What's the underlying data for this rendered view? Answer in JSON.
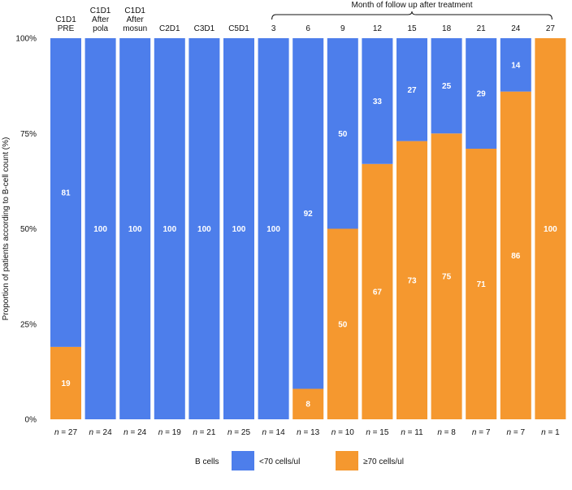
{
  "chart_data": {
    "type": "bar",
    "stacked": true,
    "categories": [
      [
        "C1D1",
        "PRE"
      ],
      [
        "C1D1",
        "After",
        "pola"
      ],
      [
        "C1D1",
        "After",
        "mosun"
      ],
      [
        "C2D1"
      ],
      [
        "C3D1"
      ],
      [
        "C5D1"
      ],
      [
        "3"
      ],
      [
        "6"
      ],
      [
        "9"
      ],
      [
        "12"
      ],
      [
        "15"
      ],
      [
        "18"
      ],
      [
        "21"
      ],
      [
        "24"
      ],
      [
        "27"
      ]
    ],
    "n_labels": [
      "n = 27",
      "n = 24",
      "n = 24",
      "n = 19",
      "n = 21",
      "n = 25",
      "n = 14",
      "n = 13",
      "n = 10",
      "n = 15",
      "n = 11",
      "n = 8",
      "n = 7",
      "n = 7",
      "n = 1"
    ],
    "series": [
      {
        "name": "≥70 cells/ul",
        "color": "#F5982F",
        "values": [
          19,
          0,
          0,
          0,
          0,
          0,
          0,
          8,
          50,
          67,
          73,
          75,
          71,
          86,
          100
        ]
      },
      {
        "name": "<70 cells/ul",
        "color": "#4D7EEB",
        "values": [
          81,
          100,
          100,
          100,
          100,
          100,
          100,
          92,
          50,
          33,
          27,
          25,
          29,
          14,
          0
        ]
      }
    ],
    "ylabel": "Proportion of patients according to B-cell count (%)",
    "ylim": [
      0,
      100
    ],
    "yticks": [
      "0%",
      "25%",
      "50%",
      "75%",
      "100%"
    ],
    "bracket_label": "Month of follow up after treatment",
    "bracket_range": [
      6,
      14
    ],
    "legend": {
      "title": "B cells",
      "position": "bottom-center"
    }
  }
}
